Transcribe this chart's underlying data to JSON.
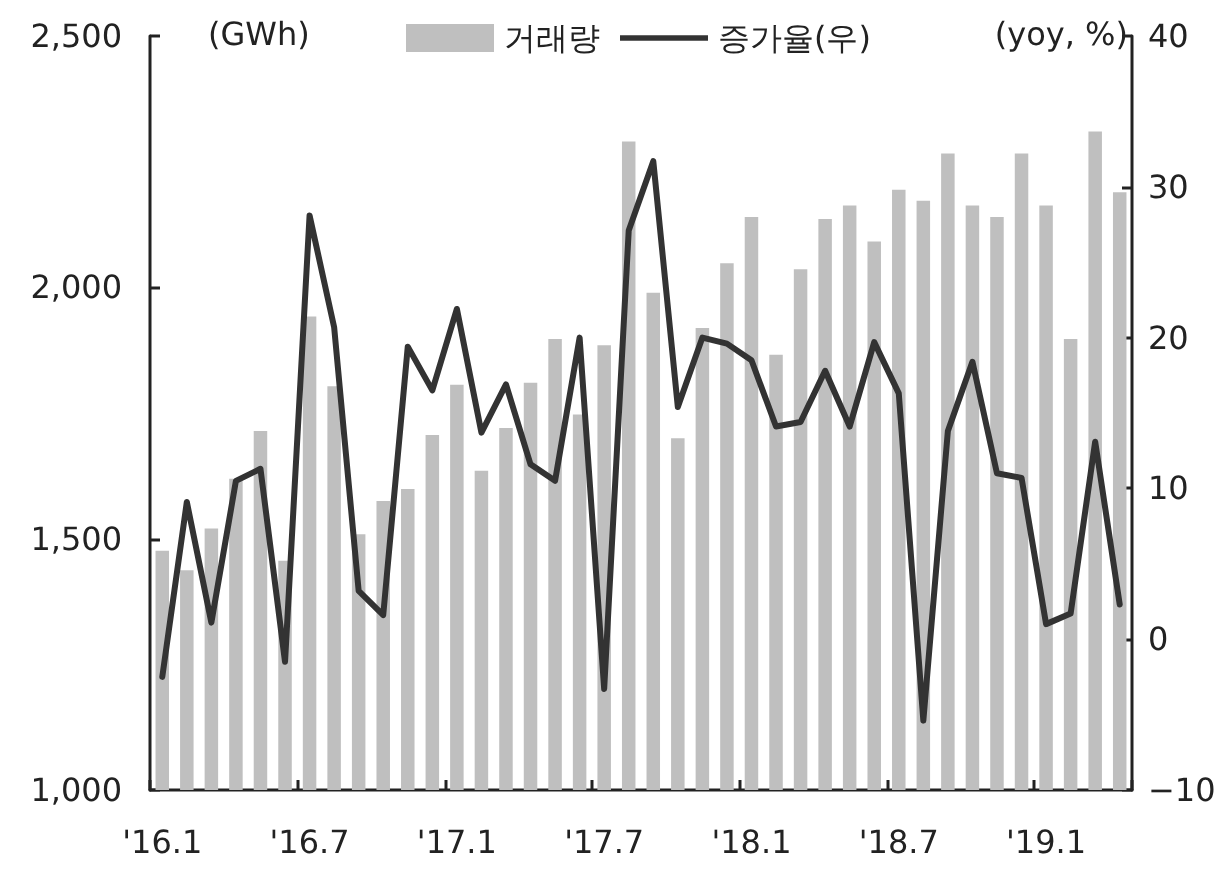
{
  "chart_data": {
    "type": "bar",
    "ylabel": "(GWh)",
    "y2label": "(yoy, %)",
    "categories": [
      "'16.1",
      null,
      null,
      null,
      null,
      null,
      "'16.7",
      null,
      null,
      null,
      null,
      null,
      "'17.1",
      null,
      null,
      null,
      null,
      null,
      "'17.7",
      null,
      null,
      null,
      null,
      null,
      "'18.1",
      null,
      null,
      null,
      null,
      null,
      "'18.7",
      null,
      null,
      null,
      null,
      null,
      "'19.1",
      null,
      null,
      null
    ],
    "series": [
      {
        "name": "거래량",
        "color": "#bfbfbf",
        "values": [
          1476,
          1437,
          1520,
          1619,
          1714,
          1456,
          1942,
          1803,
          1509,
          1575,
          1599,
          1706,
          1806,
          1635,
          1720,
          1810,
          1897,
          1747,
          1885,
          2290,
          1989,
          1700,
          1919,
          2048,
          2140,
          1866,
          2036,
          2136,
          2163,
          2091,
          2194,
          2172,
          2266,
          2163,
          2140,
          2266,
          2163,
          1897,
          2310,
          2189
        ]
      },
      {
        "name": "증가율(우)",
        "type": "line",
        "axis": "y2",
        "color": "#333333",
        "values": [
          -2.5,
          9.1,
          1.1,
          10.5,
          11.3,
          -1.5,
          28.1,
          20.7,
          3.2,
          1.6,
          19.4,
          16.5,
          21.9,
          13.7,
          16.9,
          11.6,
          10.5,
          20.0,
          -3.3,
          27.1,
          31.7,
          15.4,
          20.0,
          19.6,
          18.5,
          14.1,
          14.4,
          17.8,
          14.1,
          19.7,
          16.3,
          -5.4,
          13.8,
          18.4,
          11.0,
          10.7,
          1.0,
          1.7,
          13.1,
          2.3
        ]
      }
    ],
    "ylim": [
      1000,
      2500
    ],
    "yticks": [
      {
        "value": 1000,
        "label": "1,000"
      },
      {
        "value": 1500,
        "label": "1,500"
      },
      {
        "value": 2000,
        "label": "2,000"
      },
      {
        "value": 2500,
        "label": "2,500"
      }
    ],
    "y2lim": [
      -10,
      40
    ],
    "y2ticks": [
      {
        "value": -10,
        "label": "−10"
      },
      0,
      10,
      20,
      30,
      40
    ],
    "grid": false,
    "legend": "top",
    "marker": "none",
    "line_style": "solid"
  }
}
